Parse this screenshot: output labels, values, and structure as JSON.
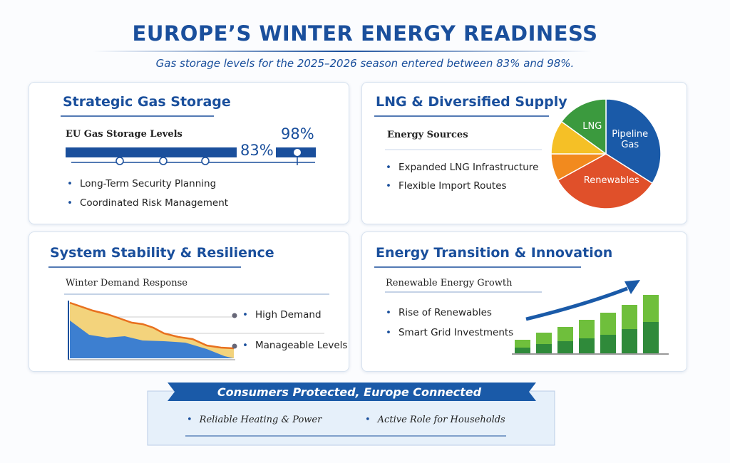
{
  "header": {
    "title": "EUROPE’S WINTER ENERGY READINESS",
    "subtitle": "Gas storage levels for the 2025–2026 season entered between 83% and 98%."
  },
  "panels": [
    {
      "title": "Strategic Gas Storage",
      "subtitle": "EU Gas Storage Levels",
      "low": "83%",
      "high": "98%",
      "bullets": [
        "Long-Term Security Planning",
        "Coordinated Risk Management"
      ]
    },
    {
      "title": "LNG & Diversified Supply",
      "subtitle": "Energy Sources",
      "bullets": [
        "Expanded LNG Infrastructure",
        "Flexible Import Routes"
      ],
      "pie": {
        "type": "pie",
        "slices": [
          {
            "name": "Pipeline Gas",
            "value": 34,
            "color": "#1a5aa8"
          },
          {
            "name": "Renewables",
            "value": 33,
            "color": "#e0502a"
          },
          {
            "name": null,
            "value": 8,
            "color": "#f28a1e"
          },
          {
            "name": null,
            "value": 10,
            "color": "#f5c026"
          },
          {
            "name": "LNG",
            "value": 15,
            "color": "#3b9a3e"
          }
        ]
      }
    },
    {
      "title": "System Stability & Resilience",
      "subtitle": "Winter Demand Response",
      "labels": [
        "High Demand",
        "Manageable Levels"
      ]
    },
    {
      "title": "Energy Transition & Innovation",
      "subtitle": "Renewable Energy Growth",
      "bullets": [
        "Rise of Renewables",
        "Smart Grid Investments"
      ]
    }
  ],
  "footer": {
    "title": "Consumers Protected, Europe Connected",
    "bullets": [
      "Reliable Heating & Power",
      "Active Role for Households"
    ]
  }
}
